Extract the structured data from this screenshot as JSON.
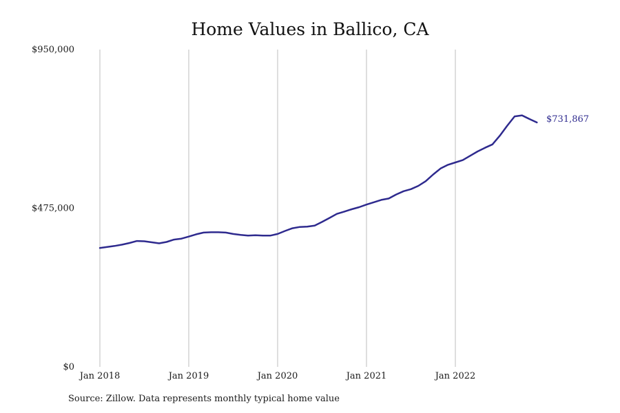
{
  "title": "Home Values in Ballico, CA",
  "source_note": "Source: Zillow. Data represents monthly typical home value",
  "colors": {
    "line": "#2e2a8e",
    "grid": "#bdbdbd",
    "text": "#1a1a1a"
  },
  "chart_data": {
    "type": "line",
    "title": "Home Values in Ballico, CA",
    "xlabel": "",
    "ylabel": "",
    "ylim": [
      0,
      950000
    ],
    "y_ticks": [
      {
        "value": 0,
        "label": "$0"
      },
      {
        "value": 475000,
        "label": "$475,000"
      },
      {
        "value": 950000,
        "label": "$950,000"
      }
    ],
    "x_ticks": [
      {
        "date": "2018-01",
        "label": "Jan 2018"
      },
      {
        "date": "2019-01",
        "label": "Jan 2019"
      },
      {
        "date": "2020-01",
        "label": "Jan 2020"
      },
      {
        "date": "2021-01",
        "label": "Jan 2021"
      },
      {
        "date": "2022-01",
        "label": "Jan 2022"
      }
    ],
    "x_range": [
      "2018-01",
      "2023-01"
    ],
    "grid": "vertical",
    "end_label": "$731,867",
    "series": [
      {
        "x": [
          "2018-01",
          "2018-02",
          "2018-03",
          "2018-04",
          "2018-05",
          "2018-06",
          "2018-07",
          "2018-08",
          "2018-09",
          "2018-10",
          "2018-11",
          "2018-12",
          "2019-01",
          "2019-02",
          "2019-03",
          "2019-04",
          "2019-05",
          "2019-06",
          "2019-07",
          "2019-08",
          "2019-09",
          "2019-10",
          "2019-11",
          "2019-12",
          "2020-01",
          "2020-02",
          "2020-03",
          "2020-04",
          "2020-05",
          "2020-06",
          "2020-07",
          "2020-08",
          "2020-09",
          "2020-10",
          "2020-11",
          "2020-12",
          "2021-01",
          "2021-02",
          "2021-03",
          "2021-04",
          "2021-05",
          "2021-06",
          "2021-07",
          "2021-08",
          "2021-09",
          "2021-10",
          "2021-11",
          "2021-12",
          "2022-01",
          "2022-02",
          "2022-03",
          "2022-04",
          "2022-05",
          "2022-06",
          "2022-07",
          "2022-08",
          "2022-09",
          "2022-10",
          "2022-11",
          "2022-12"
        ],
        "values": [
          356000,
          359000,
          362000,
          366000,
          371000,
          377000,
          376000,
          373000,
          370000,
          374000,
          381000,
          384000,
          390000,
          397000,
          402000,
          403000,
          403000,
          402000,
          398000,
          395000,
          393000,
          394000,
          393000,
          393000,
          398000,
          407000,
          415000,
          419000,
          420000,
          423000,
          434000,
          446000,
          458000,
          465000,
          472000,
          478000,
          486000,
          493000,
          500000,
          504000,
          516000,
          526000,
          532000,
          542000,
          556000,
          576000,
          594000,
          605000,
          612000,
          619000,
          632000,
          645000,
          656000,
          666000,
          692000,
          722000,
          750000,
          753000,
          742000,
          731867
        ]
      }
    ]
  }
}
